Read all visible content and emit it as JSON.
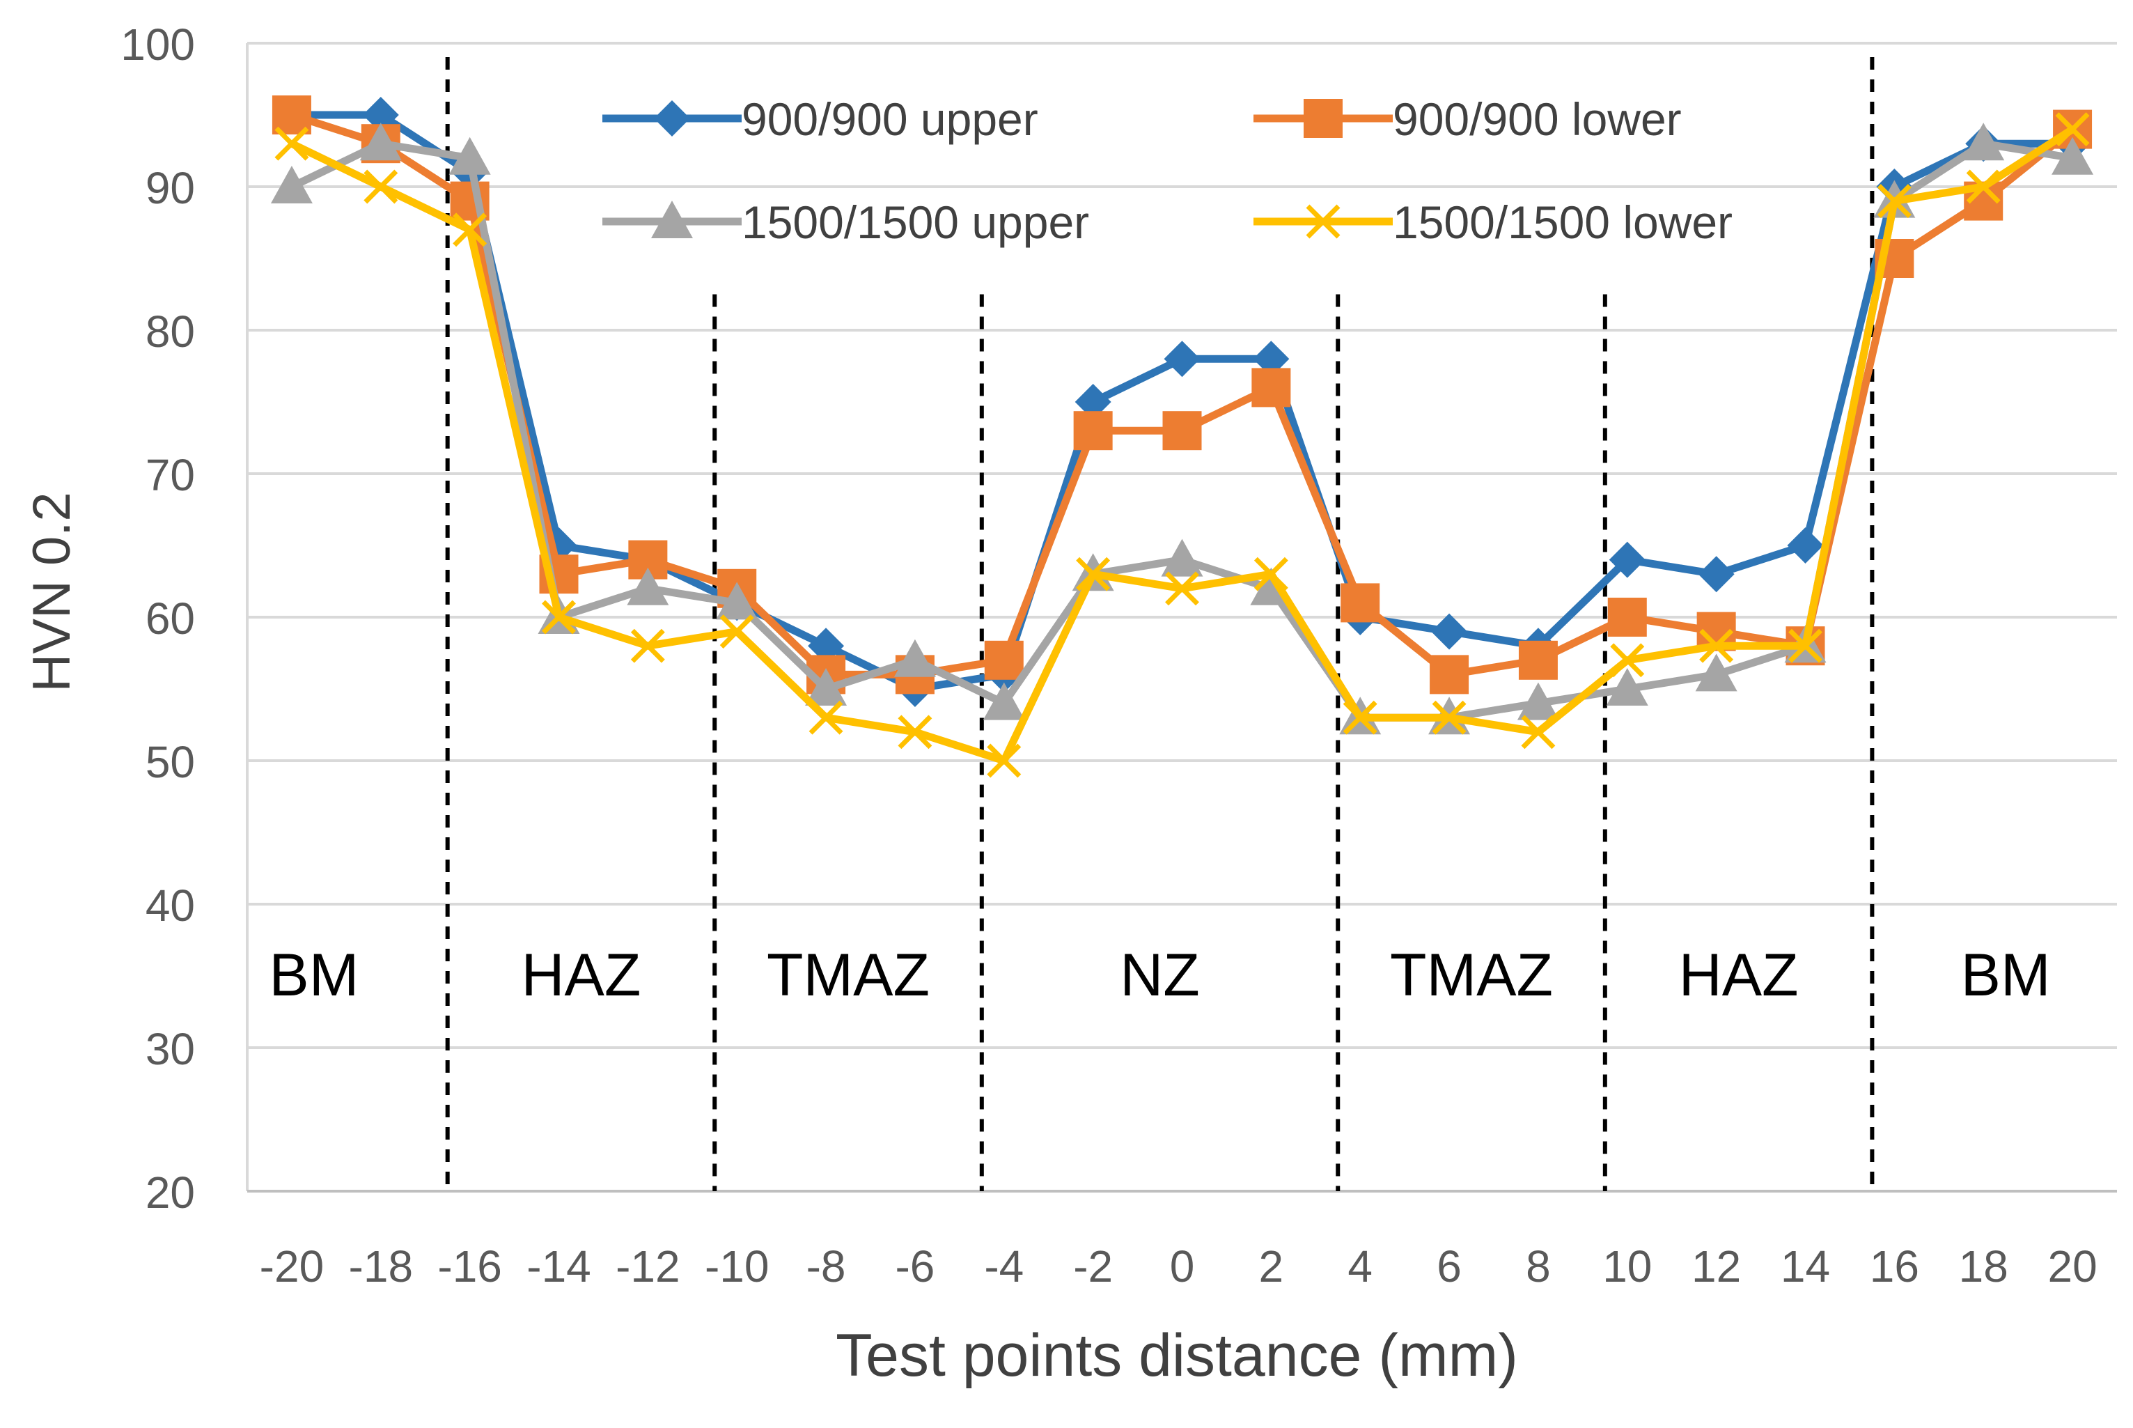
{
  "chart_data": {
    "type": "line",
    "title": "",
    "xlabel": "Test points distance (mm)",
    "ylabel": "HVN 0.2",
    "ylim": [
      20,
      100
    ],
    "yticks": [
      20,
      30,
      40,
      50,
      60,
      70,
      80,
      90,
      100
    ],
    "x": [
      -20,
      -18,
      -16,
      -14,
      -12,
      -10,
      -8,
      -6,
      -4,
      -2,
      0,
      2,
      4,
      6,
      8,
      10,
      12,
      14,
      16,
      18,
      20
    ],
    "xtick_labels": [
      "-20",
      "-18",
      "-16",
      "-14",
      "-12",
      "-10",
      "-8",
      "-6",
      "-4",
      "-2",
      "0",
      "2",
      "4",
      "6",
      "8",
      "10",
      "12",
      "14",
      "16",
      "18",
      "20"
    ],
    "grid": "horizontal",
    "legend_position": "top-center",
    "series": [
      {
        "name": "900/900 upper",
        "color": "#2E75B6",
        "marker": "diamond",
        "values": [
          95,
          95,
          91,
          65,
          64,
          61,
          58,
          55,
          56,
          75,
          78,
          78,
          60,
          59,
          58,
          64,
          63,
          65,
          90,
          93,
          93
        ]
      },
      {
        "name": "900/900 lower",
        "color": "#ED7D31",
        "marker": "square",
        "values": [
          95,
          93,
          89,
          63,
          64,
          62,
          56,
          56,
          57,
          73,
          73,
          76,
          61,
          56,
          57,
          60,
          59,
          58,
          85,
          89,
          94
        ]
      },
      {
        "name": "1500/1500 upper",
        "color": "#A5A5A5",
        "marker": "triangle",
        "values": [
          90,
          93,
          92,
          60,
          62,
          61,
          55,
          57,
          54,
          63,
          64,
          62,
          53,
          53,
          54,
          55,
          56,
          58,
          89,
          93,
          92
        ]
      },
      {
        "name": "1500/1500 lower",
        "color": "#FFC000",
        "marker": "x",
        "values": [
          93,
          90,
          87,
          60,
          58,
          59,
          53,
          52,
          50,
          63,
          62,
          63,
          53,
          53,
          52,
          57,
          58,
          58,
          89,
          90,
          94
        ]
      }
    ],
    "zone_boundaries_x": [
      -16.5,
      -10.5,
      -4.5,
      3.5,
      9.5,
      15.5
    ],
    "zones": [
      {
        "label": "BM",
        "center_x": -19.5
      },
      {
        "label": "HAZ",
        "center_x": -13.5
      },
      {
        "label": "TMAZ",
        "center_x": -7.5
      },
      {
        "label": "NZ",
        "center_x": -0.5
      },
      {
        "label": "TMAZ",
        "center_x": 6.5
      },
      {
        "label": "HAZ",
        "center_x": 12.5
      },
      {
        "label": "BM",
        "center_x": 18.5
      }
    ],
    "zone_label_y": 35
  }
}
